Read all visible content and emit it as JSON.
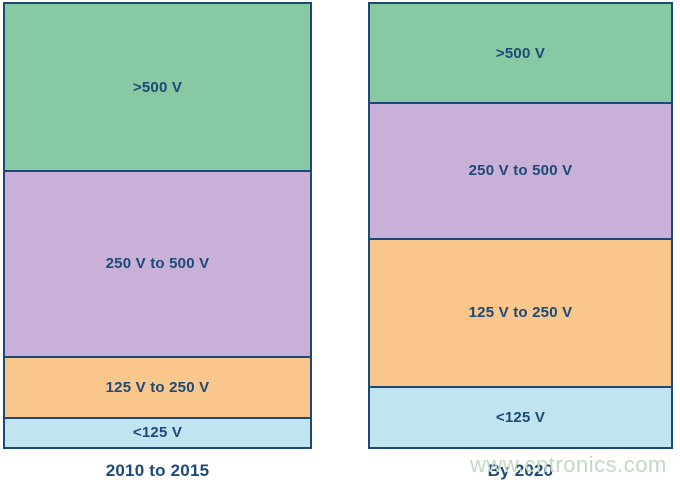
{
  "watermark": {
    "text": "www.cntronics.com"
  },
  "colors": {
    "background": "#ffffff",
    "border": "#1c4977",
    "label_text": "#1c4977",
    "watermark_text": "#c3d8c2"
  },
  "chart_data": {
    "type": "bar",
    "subtype": "100-percent-stacked-columns",
    "title": "",
    "xlabel": "",
    "ylabel": "",
    "ylim": [
      0,
      100
    ],
    "value_unit": "percent-of-total (estimated from segment heights)",
    "grid": false,
    "legend": false,
    "segment_order": "top-to-bottom as listed",
    "categories": [
      "2010 to 2015",
      "By 2020"
    ],
    "series": [
      {
        "name": ">500 V",
        "color": "#86c9a2",
        "values": [
          38.0,
          22.5
        ]
      },
      {
        "name": "250 V to 500 V",
        "color": "#c9b0d9",
        "values": [
          42.0,
          30.5
        ]
      },
      {
        "name": "125 V to 250 V",
        "color": "#f9c68b",
        "values": [
          13.5,
          33.5
        ]
      },
      {
        "name": "<125 V",
        "color": "#c0e4f0",
        "values": [
          6.5,
          13.5
        ]
      }
    ]
  }
}
